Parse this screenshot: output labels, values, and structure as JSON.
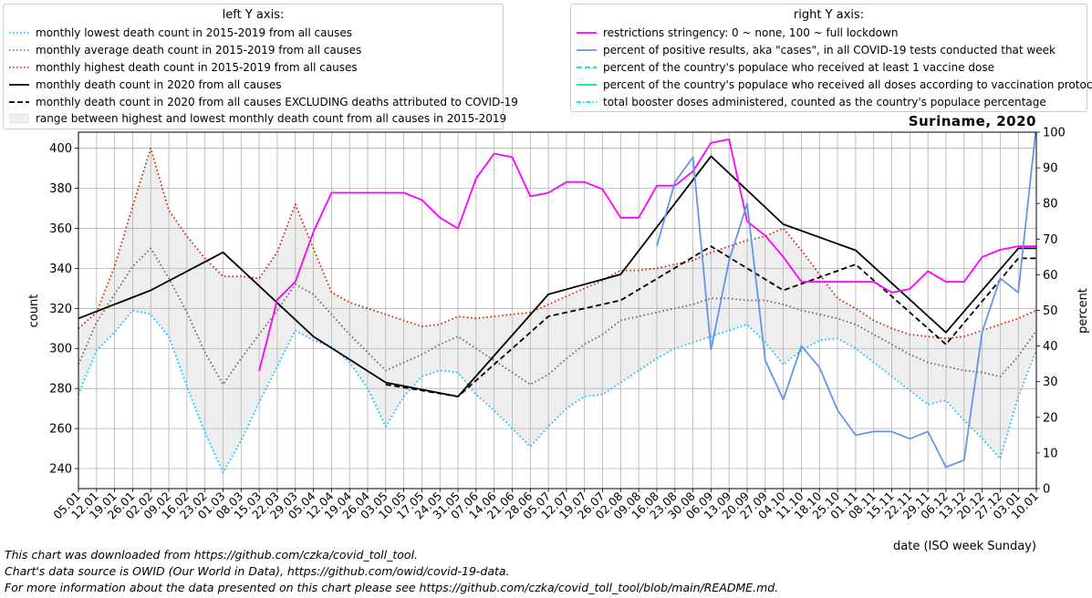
{
  "chart_data": {
    "type": "line",
    "title": "Suriname, 2020",
    "xlabel": "date (ISO week Sunday)",
    "ylabel_left": "count",
    "ylabel_right": "percent",
    "ylim_left": [
      230,
      408
    ],
    "ylim_right": [
      0,
      100
    ],
    "yticks_left": [
      240,
      260,
      280,
      300,
      320,
      340,
      360,
      380,
      400
    ],
    "yticks_right": [
      0,
      10,
      20,
      30,
      40,
      50,
      60,
      70,
      80,
      90,
      100
    ],
    "grid": true,
    "x_ticks": [
      "05.01",
      "12.01",
      "19.01",
      "26.01",
      "02.02",
      "09.02",
      "16.02",
      "23.02",
      "01.03",
      "08.03",
      "15.03",
      "22.03",
      "29.03",
      "05.04",
      "12.04",
      "19.04",
      "26.04",
      "03.05",
      "10.05",
      "17.05",
      "24.05",
      "31.05",
      "07.06",
      "14.06",
      "21.06",
      "28.06",
      "05.07",
      "12.07",
      "19.07",
      "26.07",
      "02.08",
      "09.08",
      "16.08",
      "23.08",
      "30.08",
      "06.09",
      "13.09",
      "20.09",
      "27.09",
      "04.10",
      "11.10",
      "18.10",
      "25.10",
      "01.11",
      "08.11",
      "15.11",
      "22.11",
      "29.11",
      "06.12",
      "13.12",
      "20.12",
      "27.12",
      "03.01",
      "10.01"
    ],
    "legend_left": {
      "title": "left Y axis:",
      "entries": [
        "monthly lowest death count in 2015-2019 from all causes",
        "monthly average death count in 2015-2019 from all causes",
        "monthly highest death count in 2015-2019 from all causes",
        "monthly death count in 2020 from all causes",
        "monthly death count in 2020 from all causes EXCLUDING deaths attributed to COVID-19",
        "range between highest and lowest monthly death count from all causes in 2015-2019"
      ]
    },
    "legend_right": {
      "title": "right Y axis:",
      "entries": [
        "restrictions stringency: 0 ~ none, 100 ~ full lockdown",
        "percent of positive results, aka \"cases\", in all COVID-19 tests conducted that week",
        "percent of the country's populace who received at least 1 vaccine dose",
        "percent of the country's populace who received all doses according to vaccination protocol",
        "total booster doses administered, counted as the country's populace percentage"
      ]
    },
    "series": [
      {
        "key": "lowest",
        "axis": "left",
        "color": "#00bfff",
        "style": "dotted",
        "points": [
          [
            0,
            277
          ],
          [
            1,
            299
          ],
          [
            2,
            308
          ],
          [
            3,
            319
          ],
          [
            4,
            317
          ],
          [
            5,
            306
          ],
          [
            6,
            281
          ],
          [
            7,
            258
          ],
          [
            8,
            238
          ],
          [
            9,
            254
          ],
          [
            10,
            273
          ],
          [
            11,
            291
          ],
          [
            12,
            309
          ],
          [
            13,
            304
          ],
          [
            14,
            301
          ],
          [
            15,
            293
          ],
          [
            16,
            280
          ],
          [
            17,
            261
          ],
          [
            18,
            276
          ],
          [
            19,
            286
          ],
          [
            20,
            289
          ],
          [
            21,
            288
          ],
          [
            22,
            277
          ],
          [
            23,
            269
          ],
          [
            24,
            260
          ],
          [
            25,
            251
          ],
          [
            26,
            261
          ],
          [
            27,
            270
          ],
          [
            28,
            276
          ],
          [
            29,
            277
          ],
          [
            30,
            283
          ],
          [
            31,
            289
          ],
          [
            32,
            295
          ],
          [
            33,
            300
          ],
          [
            34,
            303
          ],
          [
            35,
            306
          ],
          [
            36,
            309
          ],
          [
            37,
            312
          ],
          [
            38,
            303
          ],
          [
            39,
            292
          ],
          [
            40,
            299
          ],
          [
            41,
            304
          ],
          [
            42,
            305
          ],
          [
            43,
            300
          ],
          [
            44,
            293
          ],
          [
            45,
            286
          ],
          [
            46,
            279
          ],
          [
            47,
            272
          ],
          [
            48,
            274
          ],
          [
            49,
            264
          ],
          [
            50,
            255
          ],
          [
            51,
            245
          ],
          [
            52,
            276
          ],
          [
            53,
            299
          ]
        ]
      },
      {
        "key": "average",
        "axis": "left",
        "color": "#666666",
        "style": "dotted",
        "points": [
          [
            0,
            292
          ],
          [
            1,
            313
          ],
          [
            2,
            327
          ],
          [
            3,
            341
          ],
          [
            4,
            350
          ],
          [
            5,
            335
          ],
          [
            6,
            318
          ],
          [
            7,
            298
          ],
          [
            8,
            282
          ],
          [
            9,
            295
          ],
          [
            10,
            307
          ],
          [
            11,
            319
          ],
          [
            12,
            332
          ],
          [
            13,
            327
          ],
          [
            14,
            317
          ],
          [
            15,
            307
          ],
          [
            16,
            298
          ],
          [
            17,
            289
          ],
          [
            18,
            293
          ],
          [
            19,
            297
          ],
          [
            20,
            302
          ],
          [
            21,
            306
          ],
          [
            22,
            300
          ],
          [
            23,
            294
          ],
          [
            24,
            288
          ],
          [
            25,
            282
          ],
          [
            26,
            287
          ],
          [
            27,
            295
          ],
          [
            28,
            302
          ],
          [
            29,
            307
          ],
          [
            30,
            314
          ],
          [
            31,
            316
          ],
          [
            32,
            318
          ],
          [
            33,
            320
          ],
          [
            34,
            322
          ],
          [
            35,
            325
          ],
          [
            36,
            325
          ],
          [
            37,
            324
          ],
          [
            38,
            324
          ],
          [
            39,
            322
          ],
          [
            40,
            319
          ],
          [
            41,
            317
          ],
          [
            42,
            315
          ],
          [
            43,
            312
          ],
          [
            44,
            307
          ],
          [
            45,
            302
          ],
          [
            46,
            297
          ],
          [
            47,
            293
          ],
          [
            48,
            291
          ],
          [
            49,
            289
          ],
          [
            50,
            288
          ],
          [
            51,
            286
          ],
          [
            52,
            296
          ],
          [
            53,
            309
          ]
        ]
      },
      {
        "key": "highest",
        "axis": "left",
        "color": "#cc2200",
        "style": "dotted",
        "points": [
          [
            0,
            310
          ],
          [
            1,
            318
          ],
          [
            2,
            341
          ],
          [
            3,
            371
          ],
          [
            4,
            400
          ],
          [
            5,
            369
          ],
          [
            6,
            356
          ],
          [
            7,
            345
          ],
          [
            8,
            336
          ],
          [
            9,
            336
          ],
          [
            10,
            335
          ],
          [
            11,
            348
          ],
          [
            12,
            372
          ],
          [
            13,
            350
          ],
          [
            14,
            328
          ],
          [
            15,
            323
          ],
          [
            16,
            320
          ],
          [
            17,
            317
          ],
          [
            18,
            314
          ],
          [
            19,
            311
          ],
          [
            20,
            312
          ],
          [
            21,
            316
          ],
          [
            22,
            315
          ],
          [
            23,
            316
          ],
          [
            24,
            317
          ],
          [
            25,
            318
          ],
          [
            26,
            322
          ],
          [
            27,
            326
          ],
          [
            28,
            330
          ],
          [
            29,
            334
          ],
          [
            30,
            339
          ],
          [
            31,
            339
          ],
          [
            32,
            340
          ],
          [
            33,
            342
          ],
          [
            34,
            344
          ],
          [
            35,
            348
          ],
          [
            36,
            351
          ],
          [
            37,
            354
          ],
          [
            38,
            356
          ],
          [
            39,
            360
          ],
          [
            40,
            349
          ],
          [
            41,
            337
          ],
          [
            42,
            325
          ],
          [
            43,
            320
          ],
          [
            44,
            314
          ],
          [
            45,
            310
          ],
          [
            46,
            307
          ],
          [
            47,
            306
          ],
          [
            48,
            305
          ],
          [
            49,
            306
          ],
          [
            50,
            309
          ],
          [
            51,
            312
          ],
          [
            52,
            315
          ],
          [
            53,
            319
          ]
        ]
      },
      {
        "key": "total2020",
        "axis": "left",
        "color": "#000000",
        "style": "solid",
        "points": [
          [
            0,
            315
          ],
          [
            4,
            329
          ],
          [
            8,
            348
          ],
          [
            13,
            306
          ],
          [
            17,
            283
          ],
          [
            21,
            276
          ],
          [
            26,
            327
          ],
          [
            30,
            337
          ],
          [
            35,
            396
          ],
          [
            39,
            362
          ],
          [
            43,
            349
          ],
          [
            48,
            308
          ],
          [
            52,
            350
          ],
          [
            53,
            350
          ]
        ]
      },
      {
        "key": "excl2020",
        "axis": "left",
        "color": "#000000",
        "style": "dashed",
        "points": [
          [
            17,
            282
          ],
          [
            21,
            276
          ],
          [
            26,
            316
          ],
          [
            30,
            324
          ],
          [
            35,
            351
          ],
          [
            39,
            329
          ],
          [
            43,
            342
          ],
          [
            48,
            302
          ],
          [
            52,
            345
          ],
          [
            53,
            345
          ]
        ]
      },
      {
        "key": "stringency",
        "axis": "right",
        "color": "#ff00ff",
        "style": "solid",
        "points": [
          [
            10,
            33
          ],
          [
            11,
            53
          ],
          [
            12,
            58
          ],
          [
            13,
            72
          ],
          [
            14,
            83
          ],
          [
            15,
            83
          ],
          [
            16,
            83
          ],
          [
            17,
            83
          ],
          [
            18,
            83
          ],
          [
            19,
            81
          ],
          [
            20,
            76
          ],
          [
            21,
            73
          ],
          [
            22,
            87
          ],
          [
            23,
            94
          ],
          [
            24,
            93
          ],
          [
            25,
            82
          ],
          [
            26,
            83
          ],
          [
            27,
            86
          ],
          [
            28,
            86
          ],
          [
            29,
            84
          ],
          [
            30,
            76
          ],
          [
            31,
            76
          ],
          [
            32,
            85
          ],
          [
            33,
            85
          ],
          [
            34,
            89
          ],
          [
            35,
            97
          ],
          [
            36,
            98
          ],
          [
            37,
            75
          ],
          [
            38,
            71
          ],
          [
            39,
            65
          ],
          [
            40,
            58
          ],
          [
            41,
            58
          ],
          [
            42,
            58
          ],
          [
            43,
            58
          ],
          [
            44,
            58
          ],
          [
            45,
            55
          ],
          [
            46,
            56
          ],
          [
            47,
            61
          ],
          [
            48,
            58
          ],
          [
            49,
            58
          ],
          [
            50,
            65
          ],
          [
            51,
            67
          ],
          [
            52,
            68
          ],
          [
            53,
            68
          ]
        ]
      },
      {
        "key": "positivity",
        "axis": "right",
        "color": "#6495ed",
        "style": "solid",
        "points": [
          [
            32,
            68
          ],
          [
            33,
            86
          ],
          [
            34,
            93
          ],
          [
            35,
            39
          ],
          [
            36,
            64
          ],
          [
            37,
            80
          ],
          [
            38,
            36
          ],
          [
            39,
            25
          ],
          [
            40,
            40
          ],
          [
            41,
            34
          ],
          [
            42,
            22
          ],
          [
            43,
            15
          ],
          [
            44,
            16
          ],
          [
            45,
            16
          ],
          [
            46,
            14
          ],
          [
            47,
            16
          ],
          [
            48,
            6
          ],
          [
            49,
            8
          ],
          [
            50,
            44
          ],
          [
            51,
            59
          ],
          [
            52,
            55
          ],
          [
            53,
            102
          ]
        ]
      }
    ]
  },
  "footer": [
    "This chart was downloaded from https://github.com/czka/covid_toll_tool.",
    "Chart's data source is OWID (Our World in Data), https://github.com/owid/covid-19-data.",
    "For more information about the data presented on this chart please see https://github.com/czka/covid_toll_tool/blob/main/README.md."
  ]
}
